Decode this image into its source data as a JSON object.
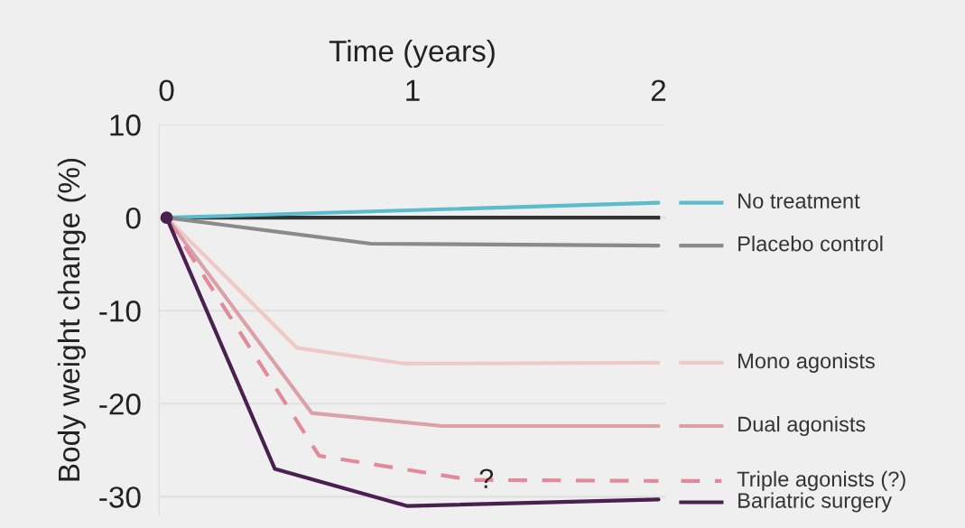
{
  "chart_data": {
    "type": "line",
    "xlabel": "Time (years)",
    "ylabel": "Body weight change (%)",
    "xlim": [
      -0.03,
      2.03
    ],
    "xticks": [
      0,
      1,
      2
    ],
    "ylim": [
      -32,
      10
    ],
    "yticks": [
      10,
      0,
      -10,
      -20,
      -30
    ],
    "grid": "y",
    "legend": "right",
    "line_style": "solid",
    "ref_lines": [
      {
        "axis": "y",
        "value": 0,
        "color": "#333333"
      }
    ],
    "annotations": [
      {
        "text": "?",
        "x": 1.3,
        "y": -28.3
      }
    ],
    "series": [
      {
        "name": "No treatment",
        "color": "#5bbccc",
        "x": [
          0,
          2
        ],
        "values": [
          0,
          1.6
        ]
      },
      {
        "name": "Placebo control",
        "color": "#8a8a8a",
        "x": [
          0,
          0.83,
          2
        ],
        "values": [
          0,
          -2.8,
          -3.0
        ]
      },
      {
        "name": "Mono agonists",
        "color": "#f0c8c8",
        "x": [
          0,
          0.53,
          0.97,
          2
        ],
        "values": [
          0,
          -14.0,
          -15.7,
          -15.6
        ]
      },
      {
        "name": "Dual agonists",
        "color": "#dba0a8",
        "x": [
          0,
          0.59,
          1.12,
          2
        ],
        "values": [
          0,
          -21.0,
          -22.4,
          -22.4
        ]
      },
      {
        "name": "Triple agonists (?)",
        "color": "#e08a9a",
        "line_style": "dashed",
        "x": [
          0,
          0.62,
          1.24,
          2
        ],
        "values": [
          0,
          -25.6,
          -28.2,
          -28.3
        ]
      },
      {
        "name": "Bariatric surgery",
        "color": "#4a2050",
        "x": [
          0,
          0.44,
          0.98,
          2
        ],
        "values": [
          0,
          -27.0,
          -31.0,
          -30.3
        ]
      },
      {
        "type": "scatter",
        "color": "#4a2050",
        "marker": "circle",
        "x": [
          0
        ],
        "values": [
          0
        ]
      }
    ]
  }
}
